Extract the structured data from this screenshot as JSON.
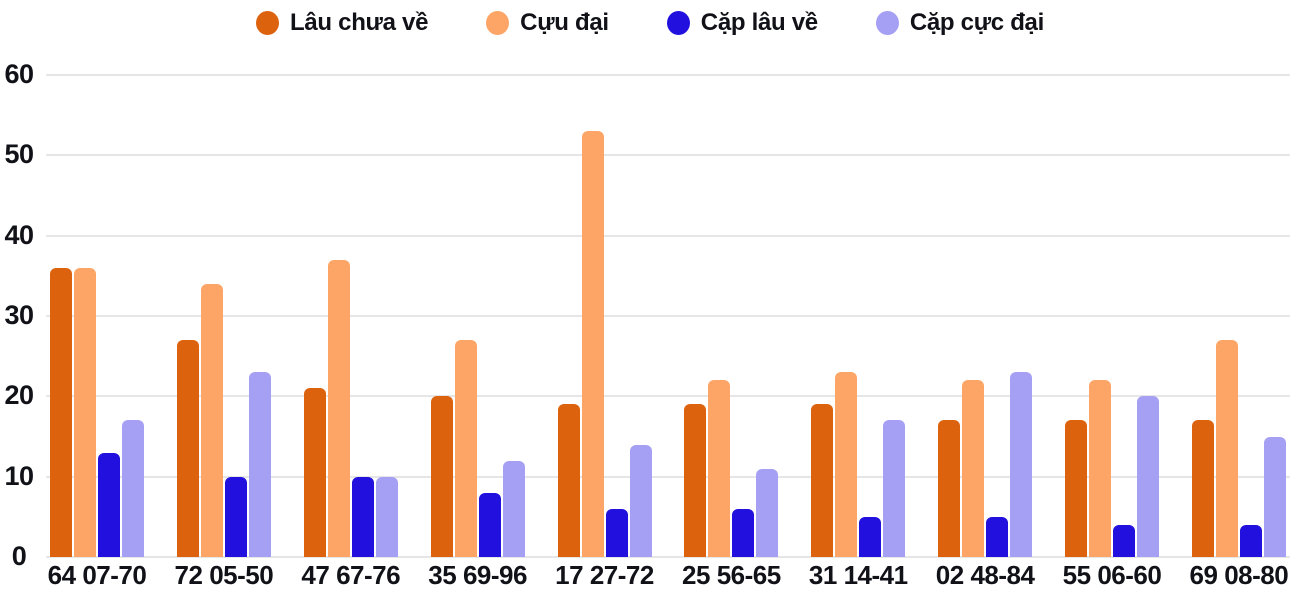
{
  "legend": {
    "position": "top",
    "items": [
      {
        "label": "Lâu chưa về",
        "color": "#dd620d"
      },
      {
        "label": "Cựu đại",
        "color": "#fca567"
      },
      {
        "label": "Cặp lâu về",
        "color": "#2211de"
      },
      {
        "label": "Cặp cực đại",
        "color": "#a6a0f5"
      }
    ]
  },
  "chart_data": {
    "type": "bar",
    "title": "",
    "xlabel": "",
    "ylabel": "",
    "categories": [
      "64 07-70",
      "72 05-50",
      "47 67-76",
      "35 69-96",
      "17 27-72",
      "25 56-65",
      "31 14-41",
      "02 48-84",
      "55 06-60",
      "69 08-80"
    ],
    "series": [
      {
        "name": "Lâu chưa về",
        "color": "#dd620d",
        "values": [
          36,
          27,
          21,
          20,
          19,
          19,
          19,
          17,
          17,
          17
        ]
      },
      {
        "name": "Cựu đại",
        "color": "#fca567",
        "values": [
          36,
          34,
          37,
          27,
          53,
          22,
          23,
          22,
          22,
          27
        ]
      },
      {
        "name": "Cặp lâu về",
        "color": "#2211de",
        "values": [
          13,
          10,
          10,
          8,
          6,
          6,
          5,
          5,
          4,
          4
        ]
      },
      {
        "name": "Cặp cực đại",
        "color": "#a6a0f5",
        "values": [
          17,
          23,
          10,
          12,
          14,
          11,
          17,
          23,
          20,
          15
        ]
      }
    ],
    "y_axis": {
      "min": 0,
      "max": 60,
      "ticks": [
        0,
        10,
        20,
        30,
        40,
        50,
        60
      ]
    },
    "grid": true,
    "legend_position": "top",
    "colors": {
      "gridline": "#e6e6e6",
      "text": "#111118",
      "background": "#ffffff"
    }
  }
}
